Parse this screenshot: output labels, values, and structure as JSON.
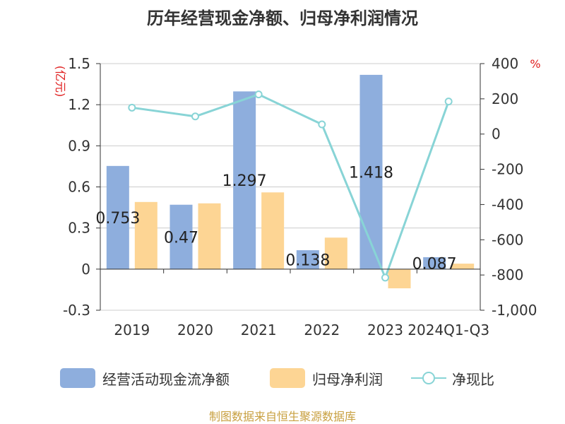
{
  "title": "历年经营现金净额、归母净利润情况",
  "source": "制图数据来自恒生聚源数据库",
  "chart_data": {
    "type": "bar",
    "categories": [
      "2019",
      "2020",
      "2021",
      "2022",
      "2023",
      "2024Q1-Q3"
    ],
    "left_axis": {
      "unit": "(亿元)",
      "ylim": [
        -0.3,
        1.5
      ],
      "ticks": [
        "1.5",
        "1.2",
        "0.9",
        "0.6",
        "0.3",
        "0",
        "-0.3"
      ]
    },
    "right_axis": {
      "unit": "%",
      "ylim": [
        -1000,
        400
      ],
      "ticks": [
        "400",
        "200",
        "0",
        "-200",
        "-400",
        "-600",
        "-800",
        "-1,000"
      ]
    },
    "series": [
      {
        "name": "经营活动现金流净额",
        "type": "bar",
        "axis": "left",
        "color": "#8eaedd",
        "values": [
          0.753,
          0.47,
          1.297,
          0.138,
          1.418,
          0.087
        ],
        "labels": [
          "0.753",
          "0.47",
          "1.297",
          "0.138",
          "1.418",
          "0.087"
        ]
      },
      {
        "name": "归母净利润",
        "type": "bar",
        "axis": "left",
        "color": "#fdd594",
        "values": [
          0.49,
          0.48,
          0.56,
          0.23,
          -0.14,
          0.04
        ]
      },
      {
        "name": "净现比",
        "type": "line",
        "axis": "right",
        "color": "#88d4d6",
        "values": [
          150,
          100,
          225,
          55,
          -815,
          185
        ]
      }
    ],
    "grid": true,
    "legend_position": "bottom"
  }
}
